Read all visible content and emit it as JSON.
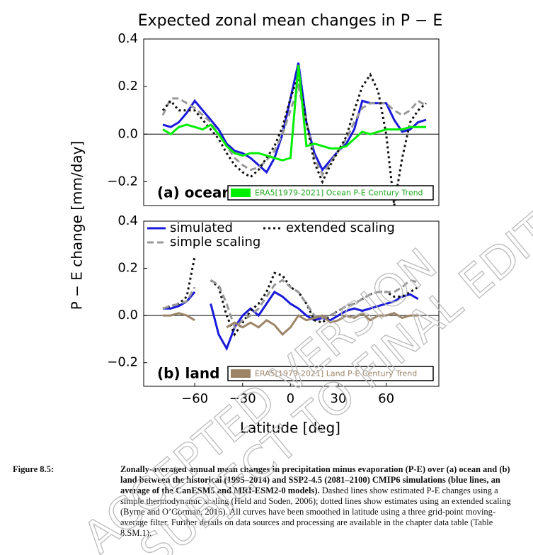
{
  "figure": {
    "title": "Expected zonal mean changes in P − E",
    "ylabel": "P − E change [mm/day]",
    "xlabel": "Latitude [deg]"
  },
  "chart_data": [
    {
      "type": "line",
      "panel_label": "(a) ocean",
      "xlim": [
        -92,
        93
      ],
      "ylim": [
        -0.3,
        0.4
      ],
      "yticks": [
        {
          "value": -0.2,
          "label": "−0.2"
        },
        {
          "value": 0,
          "label": "0.0"
        },
        {
          "value": 0.2,
          "label": "0.2"
        },
        {
          "value": 0.4,
          "label": "0.4"
        }
      ],
      "zero_line": true,
      "x": [
        -80,
        -75,
        -70,
        -65,
        -60,
        -55,
        -50,
        -45,
        -40,
        -35,
        -30,
        -25,
        -20,
        -15,
        -10,
        -5,
        0,
        5,
        10,
        15,
        20,
        25,
        30,
        35,
        40,
        45,
        50,
        55,
        60,
        65,
        70,
        75,
        80,
        85
      ],
      "series": [
        {
          "color": "#1a1adb",
          "style": "solid",
          "values": [
            0.04,
            0.03,
            0.05,
            0.09,
            0.14,
            0.1,
            0.06,
            0.02,
            -0.04,
            -0.07,
            -0.08,
            -0.1,
            -0.13,
            -0.16,
            -0.1,
            0.0,
            0.15,
            0.3,
            0.05,
            -0.08,
            -0.15,
            -0.11,
            -0.07,
            -0.04,
            0.02,
            0.14,
            0.13,
            0.13,
            0.13,
            0.06,
            0.01,
            0.02,
            0.05,
            0.06
          ]
        },
        {
          "color": "#999999",
          "style": "dashed",
          "values": [
            0.08,
            0.15,
            0.15,
            0.13,
            0.11,
            0.08,
            0.05,
            0.0,
            -0.05,
            -0.1,
            -0.13,
            -0.15,
            -0.14,
            -0.11,
            -0.07,
            0.0,
            0.1,
            0.2,
            0.05,
            -0.1,
            -0.17,
            -0.12,
            -0.07,
            -0.02,
            0.05,
            0.11,
            0.13,
            0.13,
            0.13,
            0.1,
            0.08,
            0.1,
            0.14,
            0.12
          ]
        },
        {
          "color": "#111111",
          "style": "dotted",
          "values": [
            0.1,
            0.14,
            0.1,
            0.1,
            0.1,
            0.06,
            0.02,
            -0.02,
            -0.08,
            -0.13,
            -0.16,
            -0.18,
            -0.15,
            -0.1,
            -0.05,
            0.03,
            0.15,
            0.25,
            0.05,
            -0.12,
            -0.2,
            -0.13,
            -0.07,
            -0.01,
            0.1,
            0.2,
            0.25,
            0.18,
            0.0,
            -0.3,
            -0.1,
            0.05,
            0.1,
            0.13
          ]
        },
        {
          "name": "ERA5[1979-2021] Ocean P-E Century Trend",
          "color": "#00ee00",
          "style": "solid",
          "values": [
            0.02,
            0.0,
            0.03,
            0.04,
            0.03,
            0.02,
            0.04,
            0.0,
            -0.05,
            -0.08,
            -0.09,
            -0.08,
            -0.08,
            -0.09,
            -0.1,
            -0.11,
            -0.1,
            0.29,
            -0.05,
            -0.04,
            -0.05,
            -0.06,
            -0.06,
            -0.05,
            -0.02,
            0.01,
            0.0,
            0.01,
            0.02,
            0.02,
            0.02,
            0.03,
            0.03,
            0.03
          ]
        }
      ]
    },
    {
      "type": "line",
      "panel_label": "(b) land",
      "xlim": [
        -92,
        93
      ],
      "ylim": [
        -0.3,
        0.4
      ],
      "yticks": [
        {
          "value": -0.2,
          "label": "−0.2"
        },
        {
          "value": 0,
          "label": "0.0"
        },
        {
          "value": 0.2,
          "label": "0.2"
        },
        {
          "value": 0.4,
          "label": "0.4"
        }
      ],
      "xticks": [
        {
          "value": -60,
          "label": "−60"
        },
        {
          "value": -30,
          "label": "−30"
        },
        0,
        30,
        60
      ],
      "zero_line": true,
      "x": [
        -80,
        -75,
        -70,
        -65,
        -60,
        -55,
        -50,
        -45,
        -40,
        -35,
        -30,
        -25,
        -20,
        -15,
        -10,
        -5,
        0,
        5,
        10,
        15,
        20,
        25,
        30,
        35,
        40,
        45,
        50,
        55,
        60,
        65,
        70,
        75,
        80
      ],
      "series": [
        {
          "name": "simulated",
          "color": "#1a1adb",
          "style": "solid",
          "values": [
            0.03,
            0.03,
            0.04,
            0.06,
            0.1,
            null,
            0.05,
            -0.08,
            -0.14,
            -0.05,
            0.0,
            0.03,
            0.0,
            0.05,
            0.1,
            0.08,
            0.05,
            0.03,
            0.0,
            -0.02,
            -0.01,
            -0.02,
            0.0,
            0.02,
            0.03,
            0.02,
            0.03,
            0.04,
            0.05,
            0.06,
            0.08,
            0.09,
            0.07
          ]
        },
        {
          "name": "extended scaling",
          "color": "#111111",
          "style": "dotted",
          "values": [
            0.03,
            0.04,
            0.05,
            0.08,
            0.25,
            null,
            0.15,
            0.12,
            0.0,
            -0.08,
            -0.03,
            0.02,
            0.05,
            0.1,
            0.18,
            0.17,
            0.12,
            0.1,
            0.05,
            -0.02,
            -0.03,
            0.0,
            0.02,
            0.04,
            0.05,
            0.07,
            0.09,
            0.1,
            0.1,
            0.08,
            0.08,
            0.1,
            0.12
          ]
        },
        {
          "name": "simple scaling",
          "color": "#999999",
          "style": "dashed",
          "values": [
            0.03,
            0.04,
            0.05,
            0.06,
            0.12,
            null,
            0.15,
            0.13,
            0.05,
            -0.05,
            -0.02,
            0.0,
            0.03,
            0.08,
            0.13,
            0.15,
            0.12,
            0.1,
            0.05,
            0.0,
            -0.01,
            0.0,
            0.02,
            0.04,
            0.05,
            0.07,
            0.09,
            0.1,
            0.1,
            0.1,
            0.12,
            0.15,
            0.14
          ]
        },
        {
          "name": "ERA5[1979-2021] Land  P-E Century Trend",
          "color": "#9c8467",
          "style": "solid",
          "values": [
            0.0,
            0.0,
            0.01,
            0.0,
            -0.02,
            null,
            null,
            null,
            -0.05,
            -0.03,
            -0.05,
            -0.03,
            -0.05,
            -0.02,
            -0.04,
            -0.08,
            -0.05,
            0.0,
            -0.02,
            -0.01,
            0.0,
            -0.03,
            -0.02,
            0.0,
            -0.01,
            0.01,
            -0.02,
            0.0,
            0.0,
            0.01,
            -0.01,
            0.0,
            0.0
          ]
        }
      ]
    }
  ],
  "caption": {
    "label": "Figure 8.5:",
    "bold": "Zonally-averaged annual mean changes in precipitation minus evaporation (P-E) over (a) ocean and (b) land between the historical (1995–2014) and SSP2-4.5 (2081–2100) CMIP6 simulations (blue lines, an average of the CanESM5 and MRI-ESM2-0 models).",
    "text": "Dashed lines show estimated P-E changes using a simple thermodynamic scaling (Held and Soden, 2006); dotted lines show estimates using an extended scaling (Byrne and O’Gorman, 2016). All curves have been smoothed in latitude using a three grid-point moving-average filter. Further details on data sources and processing are available in the chapter data table (Table 8.SM.1)."
  },
  "watermark": [
    "ACCEPTED VERSION",
    "SUBJECT TO FINAL EDITING"
  ]
}
